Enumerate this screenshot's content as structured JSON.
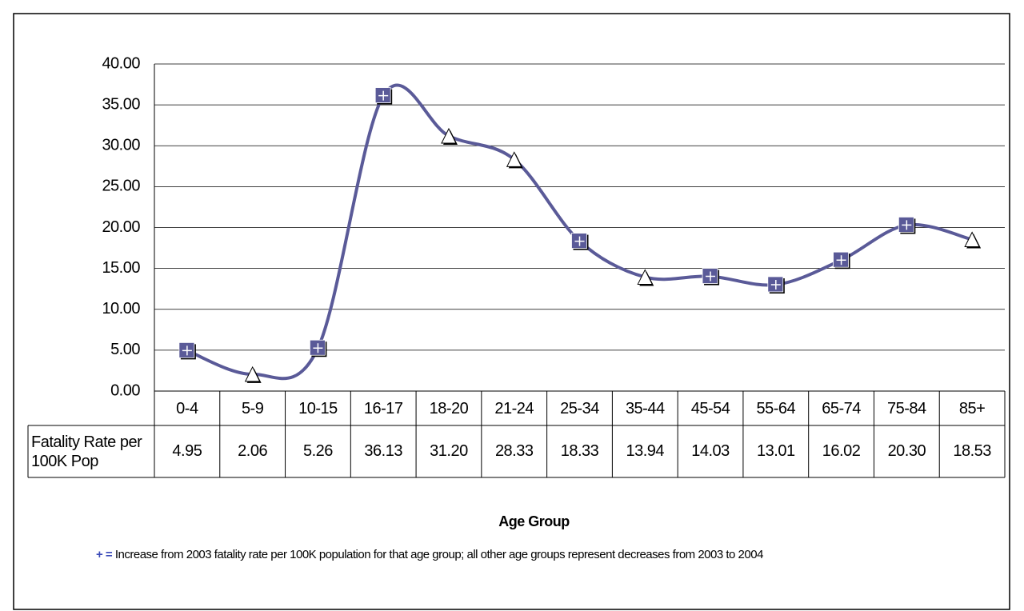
{
  "chart_data": {
    "type": "line",
    "categories": [
      "0-4",
      "5-9",
      "10-15",
      "16-17",
      "18-20",
      "21-24",
      "25-34",
      "35-44",
      "45-54",
      "55-64",
      "65-74",
      "75-84",
      "85+"
    ],
    "series": [
      {
        "name": "Fatality Rate per 100K Pop",
        "color": "#5a5a98",
        "values": [
          4.95,
          2.06,
          5.26,
          36.13,
          31.2,
          28.33,
          18.33,
          13.94,
          14.03,
          13.01,
          16.02,
          20.3,
          18.53
        ],
        "value_labels": [
          "4.95",
          "2.06",
          "5.26",
          "36.13",
          "31.20",
          "28.33",
          "18.33",
          "13.94",
          "14.03",
          "13.01",
          "16.02",
          "20.30",
          "18.53"
        ],
        "increase": [
          true,
          false,
          true,
          true,
          false,
          false,
          true,
          false,
          true,
          true,
          true,
          true,
          false
        ]
      }
    ],
    "ylim": [
      0,
      40
    ],
    "yticks": [
      {
        "value": 0,
        "label": "0.00"
      },
      {
        "value": 5,
        "label": "5.00"
      },
      {
        "value": 10,
        "label": "10.00"
      },
      {
        "value": 15,
        "label": "15.00"
      },
      {
        "value": 20,
        "label": "20.00"
      },
      {
        "value": 25,
        "label": "25.00"
      },
      {
        "value": 30,
        "label": "30.00"
      },
      {
        "value": 35,
        "label": "35.00"
      },
      {
        "value": 40,
        "label": "40.00"
      }
    ],
    "grid": true,
    "xlabel": "Age Group",
    "note_symbol": "+ =",
    "note": "Increase from 2003 fatality rate per 100K population for that age group; all other age groups represent decreases from 2003 to 2004"
  }
}
